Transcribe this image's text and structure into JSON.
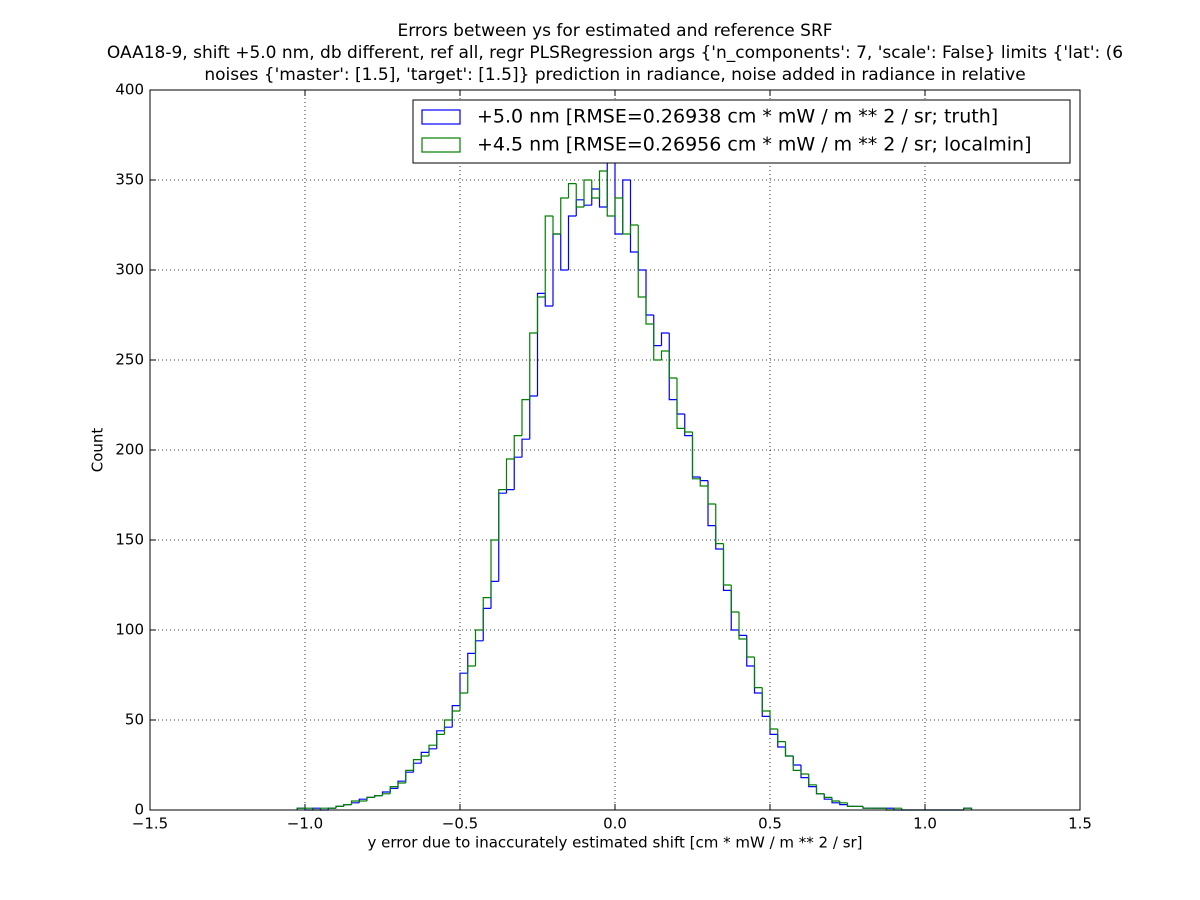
{
  "chart_data": {
    "type": "histogram",
    "title": [
      "Errors between ys for estimated and reference SRF",
      "OAA18-9, shift +5.0 nm, db different, ref all, regr PLSRegression args {'n_components': 7, 'scale': False} limits {'lat': (6",
      "noises {'master': [1.5], 'target': [1.5]} prediction in radiance, noise added in radiance in relative"
    ],
    "xlabel": "y error due to inaccurately estimated shift [cm * mW / m ** 2 / sr]",
    "ylabel": "Count",
    "bins": [
      -1.025,
      -1,
      -0.975,
      -0.95,
      -0.925,
      -0.9,
      -0.875,
      -0.85,
      -0.825,
      -0.8,
      -0.775,
      -0.75,
      -0.725,
      -0.7,
      -0.675,
      -0.65,
      -0.625,
      -0.6,
      -0.575,
      -0.55,
      -0.525,
      -0.5,
      -0.475,
      -0.45,
      -0.425,
      -0.4,
      -0.375,
      -0.35,
      -0.325,
      -0.3,
      -0.275,
      -0.25,
      -0.225,
      -0.2,
      -0.175,
      -0.15,
      -0.125,
      -0.1,
      -0.075,
      -0.05,
      -0.025,
      0,
      0.025,
      0.05,
      0.075,
      0.1,
      0.125,
      0.15,
      0.175,
      0.2,
      0.225,
      0.25,
      0.275,
      0.3,
      0.325,
      0.35,
      0.375,
      0.4,
      0.425,
      0.45,
      0.475,
      0.5,
      0.525,
      0.55,
      0.575,
      0.6,
      0.625,
      0.65,
      0.675,
      0.7,
      0.725,
      0.75,
      0.775,
      0.8,
      0.825,
      0.85,
      0.875,
      0.9,
      0.925,
      0.95,
      0.975,
      1,
      1.025,
      1.05,
      1.075,
      1.1,
      1.125,
      1.15
    ],
    "series": [
      {
        "name": "+5.0 nm [RMSE=0.26938 cm * mW / m ** 2 / sr; truth]",
        "color": "#0000ff",
        "values": [
          1,
          0,
          1,
          0,
          1,
          2,
          3,
          4,
          6,
          7,
          8,
          10,
          12,
          16,
          21,
          26,
          32,
          34,
          44,
          46,
          58,
          76,
          87,
          94,
          112,
          127,
          176,
          178,
          196,
          206,
          230,
          287,
          280,
          320,
          300,
          330,
          339,
          336,
          345,
          335,
          360,
          320,
          350,
          310,
          300,
          275,
          258,
          265,
          228,
          220,
          208,
          185,
          183,
          158,
          145,
          122,
          100,
          97,
          80,
          65,
          52,
          42,
          35,
          30,
          25,
          18,
          13,
          9,
          6,
          4,
          3,
          2,
          2,
          1,
          1,
          1,
          1,
          0,
          0,
          0,
          0,
          0,
          0,
          0,
          0,
          0,
          1
        ]
      },
      {
        "name": "+4.5 nm [RMSE=0.26956 cm * mW / m ** 2 / sr; localmin]",
        "color": "#008000",
        "values": [
          1,
          1,
          0,
          1,
          1,
          2,
          3,
          5,
          5,
          7,
          8,
          9,
          13,
          15,
          22,
          28,
          30,
          36,
          42,
          50,
          55,
          65,
          80,
          100,
          118,
          150,
          178,
          195,
          208,
          228,
          265,
          285,
          330,
          320,
          340,
          348,
          335,
          350,
          340,
          355,
          330,
          340,
          320,
          325,
          285,
          270,
          250,
          255,
          240,
          212,
          210,
          184,
          180,
          170,
          148,
          125,
          110,
          95,
          85,
          68,
          55,
          45,
          38,
          30,
          22,
          20,
          14,
          9,
          7,
          5,
          4,
          2,
          2,
          1,
          1,
          1,
          0,
          1,
          0,
          0,
          0,
          0,
          0,
          0,
          0,
          0,
          1
        ]
      }
    ],
    "xlim": [
      -1.5,
      1.5
    ],
    "xticks": [
      {
        "value": -1.5,
        "label": "−1.5"
      },
      {
        "value": -1.0,
        "label": "−1.0"
      },
      {
        "value": -0.5,
        "label": "−0.5"
      },
      {
        "value": 0,
        "label": "0.0"
      },
      0.5,
      {
        "value": 1.0,
        "label": "1.0"
      },
      1.5
    ],
    "ylim": [
      0,
      400
    ],
    "yticks": [
      0,
      50,
      100,
      150,
      200,
      250,
      300,
      350,
      400
    ],
    "grid": true,
    "legend": "upper right"
  }
}
